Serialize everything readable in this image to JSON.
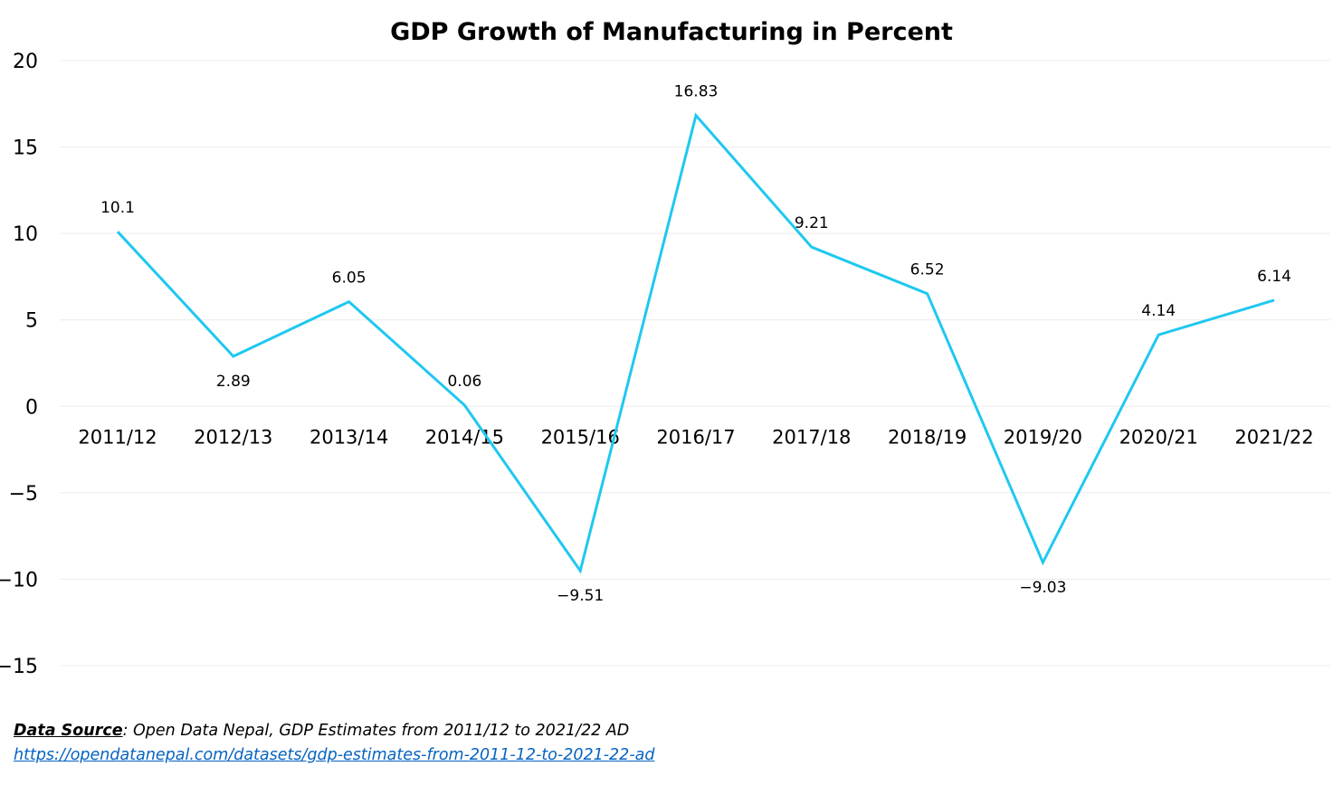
{
  "chart_data": {
    "type": "line",
    "title": "GDP Growth of Manufacturing in Percent",
    "xlabel": "",
    "ylabel": "",
    "categories": [
      "2011/12",
      "2012/13",
      "2013/14",
      "2014/15",
      "2015/16",
      "2016/17",
      "2017/18",
      "2018/19",
      "2019/20",
      "2020/21",
      "2021/22"
    ],
    "series": [
      {
        "values": [
          10.1,
          2.89,
          6.05,
          0.06,
          -9.51,
          16.83,
          9.21,
          6.52,
          -9.03,
          4.14,
          6.14
        ],
        "labels": [
          "10.1",
          "2.89",
          "6.05",
          "0.06",
          "-9.51",
          "16.83",
          "9.21",
          "6.52",
          "-9.03",
          "4.14",
          "6.14"
        ],
        "color": "#1fc8f0"
      }
    ],
    "ylim": [
      -15,
      20
    ],
    "yticks": [
      "20",
      "15",
      "10",
      "5",
      "0",
      "-5",
      "-10",
      "-15"
    ],
    "grid": true,
    "gridline_color": "#ececec",
    "legend": "none"
  },
  "source": {
    "prefix": "Data Source",
    "text": ": Open Data Nepal,  GDP Estimates from 2011/12 to 2021/22 AD",
    "link": "https://opendatanepal.com/datasets/gdp-estimates-from-2011-12-to-2021-22-ad"
  }
}
